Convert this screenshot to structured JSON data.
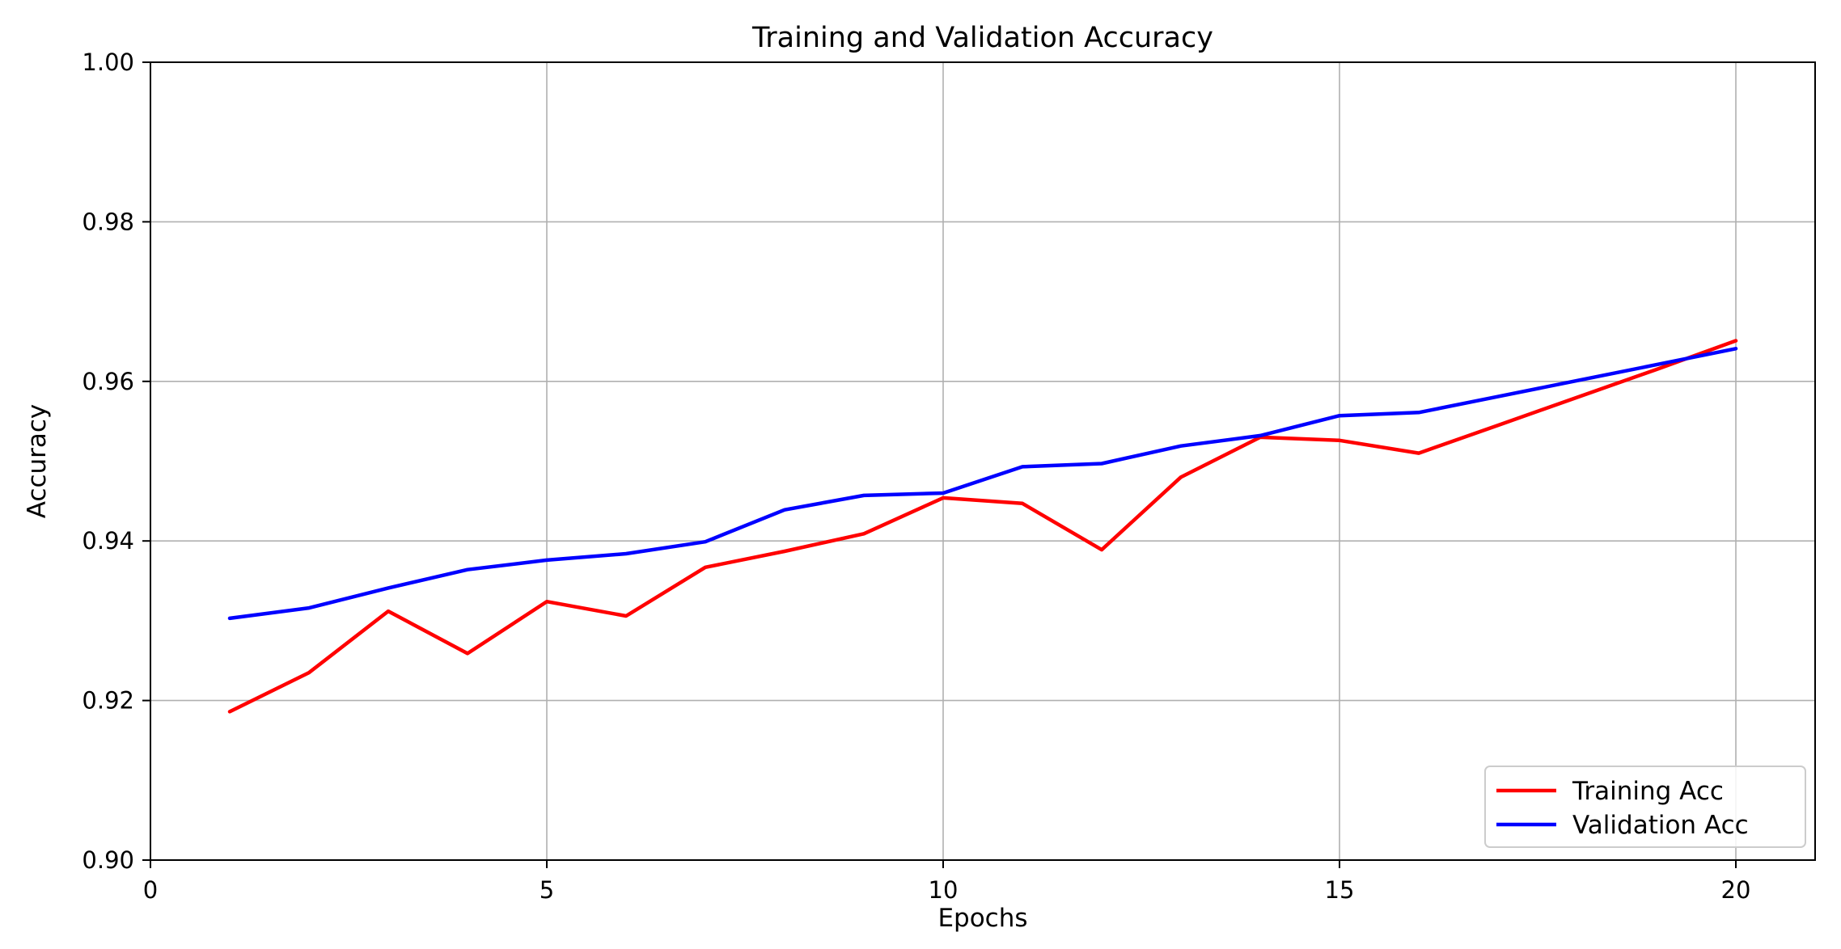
{
  "chart_data": {
    "type": "line",
    "title": "Training and Validation Accuracy",
    "xlabel": "Epochs",
    "ylabel": "Accuracy",
    "xlim": [
      0,
      21
    ],
    "ylim": [
      0.9,
      1.0
    ],
    "xticks": [
      0,
      5,
      10,
      15,
      20
    ],
    "xtick_labels": [
      "0",
      "5",
      "10",
      "15",
      "20"
    ],
    "yticks": [
      0.9,
      0.92,
      0.94,
      0.96,
      0.98,
      1.0
    ],
    "ytick_labels": [
      "0.90",
      "0.92",
      "0.94",
      "0.96",
      "0.98",
      "1.00"
    ],
    "grid": true,
    "legend_position": "lower-right",
    "x": [
      1,
      2,
      3,
      4,
      5,
      6,
      7,
      8,
      9,
      10,
      11,
      12,
      13,
      14,
      15,
      16,
      17,
      18,
      19,
      20
    ],
    "series": [
      {
        "name": "Training Acc",
        "color": "#ff0000",
        "values": [
          0.9186,
          0.9235,
          0.9312,
          0.9259,
          0.9324,
          0.9306,
          0.9367,
          0.9387,
          0.9409,
          0.9454,
          0.9447,
          0.9389,
          0.948,
          0.953,
          0.9526,
          0.951,
          0.9545,
          0.958,
          0.9615,
          0.9651
        ]
      },
      {
        "name": "Validation Acc",
        "color": "#0000ff",
        "values": [
          0.9303,
          0.9316,
          0.9341,
          0.9364,
          0.9376,
          0.9384,
          0.9399,
          0.9439,
          0.9457,
          0.946,
          0.9493,
          0.9497,
          0.9519,
          0.9532,
          0.9557,
          0.9561,
          0.9581,
          0.9601,
          0.9621,
          0.9641
        ]
      }
    ]
  }
}
